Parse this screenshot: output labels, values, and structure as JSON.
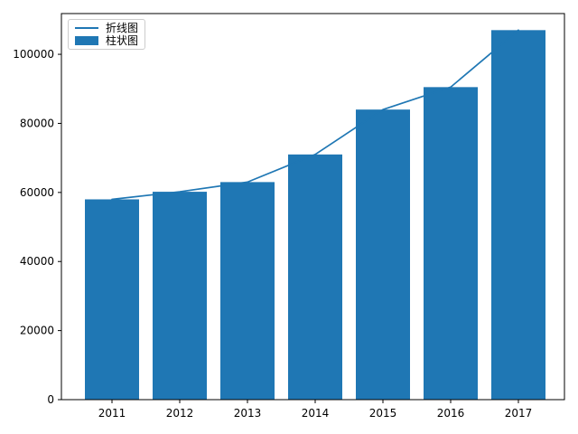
{
  "chart_data": {
    "type": "bar",
    "categories": [
      "2011",
      "2012",
      "2013",
      "2014",
      "2015",
      "2016",
      "2017"
    ],
    "series": [
      {
        "name": "折线图",
        "type": "line",
        "values": [
          58000,
          60200,
          63000,
          71000,
          84000,
          90500,
          107000
        ]
      },
      {
        "name": "柱状图",
        "type": "bar",
        "values": [
          58000,
          60200,
          63000,
          71000,
          84000,
          90500,
          107000
        ]
      }
    ],
    "title": "",
    "xlabel": "",
    "ylabel": "",
    "ylim": [
      0,
      111800
    ],
    "yticks": [
      0,
      20000,
      40000,
      60000,
      80000,
      100000
    ],
    "grid": false,
    "legend_position": "upper left",
    "bar_color": "#1f77b4",
    "line_color": "#1f77b4",
    "spine_color": "#000000",
    "tick_label_color": "#000000"
  },
  "legend": {
    "items": [
      {
        "label": "折线图",
        "swatch": "line-swatch-icon"
      },
      {
        "label": "柱状图",
        "swatch": "bar-swatch-icon"
      }
    ]
  }
}
